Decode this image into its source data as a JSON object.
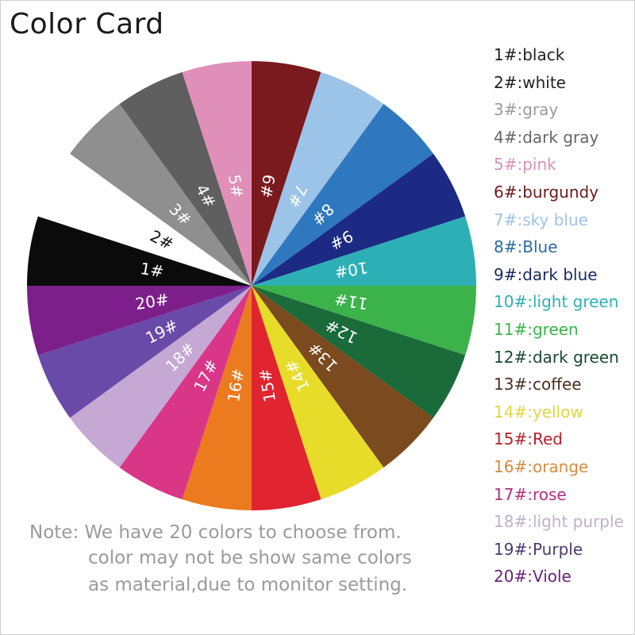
{
  "title": "Color Card",
  "colors": [
    {
      "label": "1#",
      "name": "black",
      "fill": "#0b0b0b",
      "text": "#222222",
      "label_color": "#ffffff"
    },
    {
      "label": "2#",
      "name": "white",
      "fill": "#ffffff",
      "text": "#222222",
      "label_color": "#111111"
    },
    {
      "label": "3#",
      "name": "gray",
      "fill": "#8f8f8f",
      "text": "#9a9a9a",
      "label_color": "#ffffff"
    },
    {
      "label": "4#",
      "name": "dark gray",
      "fill": "#5f5f5f",
      "text": "#666666",
      "label_color": "#ffffff"
    },
    {
      "label": "5#",
      "name": "pink",
      "fill": "#e08fb8",
      "text": "#d890b8",
      "label_color": "#ffffff"
    },
    {
      "label": "6#",
      "name": "burgundy",
      "fill": "#7a1a1e",
      "text": "#6b1a1a",
      "label_color": "#ffffff"
    },
    {
      "label": "7#",
      "name": "sky blue",
      "fill": "#9cc3e8",
      "text": "#9cc3e8",
      "label_color": "#ffffff"
    },
    {
      "label": "8#",
      "name": "Blue",
      "fill": "#2f78c0",
      "text": "#2a6aa0",
      "label_color": "#ffffff"
    },
    {
      "label": "9#",
      "name": "dark blue",
      "fill": "#1c2a84",
      "text": "#1c2a60",
      "label_color": "#ffffff"
    },
    {
      "label": "10#",
      "name": "light green",
      "fill": "#2db0b5",
      "text": "#2db0b5",
      "label_color": "#ffffff"
    },
    {
      "label": "11#",
      "name": "green",
      "fill": "#3bb34a",
      "text": "#3bb34a",
      "label_color": "#ffffff"
    },
    {
      "label": "12#",
      "name": "dark green",
      "fill": "#1a6a3a",
      "text": "#1a4a30",
      "label_color": "#ffffff"
    },
    {
      "label": "13#",
      "name": "coffee",
      "fill": "#7b4a1e",
      "text": "#4a3020",
      "label_color": "#ffffff"
    },
    {
      "label": "14#",
      "name": "yellow",
      "fill": "#e8dc2a",
      "text": "#e0d640",
      "label_color": "#ffffff"
    },
    {
      "label": "15#",
      "name": "Red",
      "fill": "#e02430",
      "text": "#b8202a",
      "label_color": "#ffffff"
    },
    {
      "label": "16#",
      "name": "orange",
      "fill": "#ec7a1e",
      "text": "#d88a40",
      "label_color": "#ffffff"
    },
    {
      "label": "17#",
      "name": "rose",
      "fill": "#d93687",
      "text": "#b03080",
      "label_color": "#ffffff"
    },
    {
      "label": "18#",
      "name": "light purple",
      "fill": "#c5a8d4",
      "text": "#c0b0c8",
      "label_color": "#ffffff"
    },
    {
      "label": "19#",
      "name": "Purple",
      "fill": "#6a4aa8",
      "text": "#4a3a70",
      "label_color": "#ffffff"
    },
    {
      "label": "20#",
      "name": "Viole",
      "fill": "#7c1f8a",
      "text": "#6a1f7a",
      "label_color": "#ffffff"
    }
  ],
  "note": {
    "line1": "Note: We have 20 colors to choose from.",
    "line2": "color may not be show same colors",
    "line3": "as material,due to monitor setting."
  }
}
